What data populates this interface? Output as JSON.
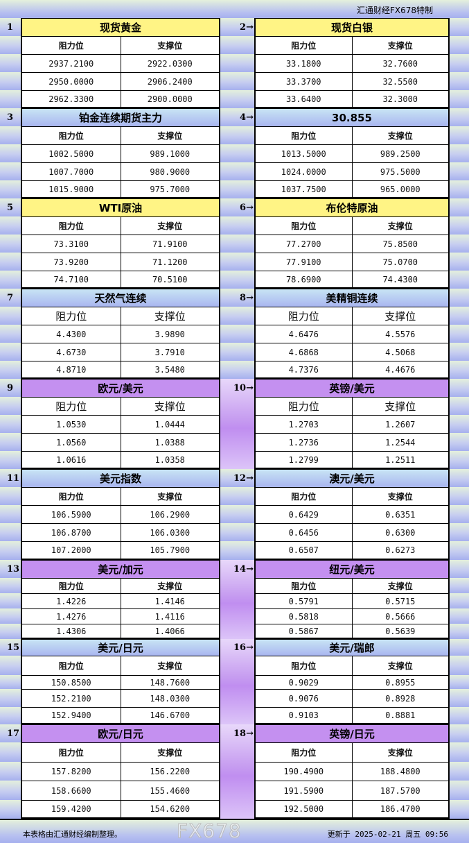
{
  "brand": "汇通财经FX678特制",
  "sections": [
    {
      "style": "yellow",
      "left": {
        "no": "1",
        "title": "现货黄金",
        "headers": [
          "阻力位",
          "支撑位"
        ],
        "rows": [
          [
            "2937.2100",
            "2922.0300"
          ],
          [
            "2950.0000",
            "2906.2400"
          ],
          [
            "2962.3300",
            "2900.0000"
          ]
        ]
      },
      "right": {
        "no": "2→",
        "title": "现货白银",
        "headers": [
          "阻力位",
          "支撑位"
        ],
        "rows": [
          [
            "33.1800",
            "32.7600"
          ],
          [
            "33.3700",
            "32.5500"
          ],
          [
            "33.6400",
            "32.3000"
          ]
        ]
      }
    },
    {
      "style": "blue",
      "left": {
        "no": "3",
        "title": "铂金连续期货主力",
        "headers": [
          "阻力位",
          "支撑位"
        ],
        "rows": [
          [
            "1002.5000",
            "989.1000"
          ],
          [
            "1007.7000",
            "980.9000"
          ],
          [
            "1015.9000",
            "975.7000"
          ]
        ]
      },
      "right": {
        "no": "4→",
        "title": "30.855",
        "headers": [
          "阻力位",
          "支撑位"
        ],
        "rows": [
          [
            "1013.5000",
            "989.2500"
          ],
          [
            "1024.0000",
            "975.5000"
          ],
          [
            "1037.7500",
            "965.0000"
          ]
        ]
      }
    },
    {
      "style": "yellow",
      "left": {
        "no": "5",
        "title": "WTI原油",
        "headers": [
          "阻力位",
          "支撑位"
        ],
        "rows": [
          [
            "73.3100",
            "71.9100"
          ],
          [
            "73.9200",
            "71.1200"
          ],
          [
            "74.7100",
            "70.5100"
          ]
        ]
      },
      "right": {
        "no": "6→",
        "title": "布伦特原油",
        "headers": [
          "阻力位",
          "支撑位"
        ],
        "rows": [
          [
            "77.2700",
            "75.8500"
          ],
          [
            "77.9100",
            "75.0700"
          ],
          [
            "78.6900",
            "74.4300"
          ]
        ]
      }
    },
    {
      "style": "blue",
      "left": {
        "no": "7",
        "title": "天然气连续",
        "headers": [
          "阻力位",
          "支撑位"
        ],
        "rows": [
          [
            "4.4300",
            "3.9890"
          ],
          [
            "4.6730",
            "3.7910"
          ],
          [
            "4.8710",
            "3.5480"
          ]
        ]
      },
      "right": {
        "no": "8→",
        "title": "美精铜连续",
        "headers": [
          "阻力位",
          "支撑位"
        ],
        "rows": [
          [
            "4.6476",
            "4.5576"
          ],
          [
            "4.6868",
            "4.5068"
          ],
          [
            "4.7376",
            "4.4676"
          ]
        ]
      }
    },
    {
      "style": "purple",
      "left": {
        "no": "9",
        "title": "欧元/美元",
        "headers": [
          "阻力位",
          "支撑位"
        ],
        "rows": [
          [
            "1.0530",
            "1.0444"
          ],
          [
            "1.0560",
            "1.0388"
          ],
          [
            "1.0616",
            "1.0358"
          ]
        ]
      },
      "right": {
        "no": "10→",
        "title": "英镑/美元",
        "headers": [
          "阻力位",
          "支撑位"
        ],
        "rows": [
          [
            "1.2703",
            "1.2607"
          ],
          [
            "1.2736",
            "1.2544"
          ],
          [
            "1.2799",
            "1.2511"
          ]
        ]
      }
    },
    {
      "style": "blue",
      "left": {
        "no": "11",
        "title": "美元指数",
        "headers": [
          "阻力位",
          "支撑位"
        ],
        "rows": [
          [
            "106.5900",
            "106.2900"
          ],
          [
            "106.8700",
            "106.0300"
          ],
          [
            "107.2000",
            "105.7900"
          ]
        ]
      },
      "right": {
        "no": "12→",
        "title": "澳元/美元",
        "headers": [
          "阻力位",
          "支撑位"
        ],
        "rows": [
          [
            "0.6429",
            "0.6351"
          ],
          [
            "0.6456",
            "0.6300"
          ],
          [
            "0.6507",
            "0.6273"
          ]
        ]
      }
    },
    {
      "style": "purple",
      "left": {
        "no": "13",
        "title": "美元/加元",
        "headers": [
          "阻力位",
          "支撑位"
        ],
        "rows": [
          [
            "1.4226",
            "1.4146"
          ],
          [
            "1.4276",
            "1.4116"
          ],
          [
            "1.4306",
            "1.4066"
          ]
        ]
      },
      "right": {
        "no": "14→",
        "title": "纽元/美元",
        "headers": [
          "阻力位",
          "支撑位"
        ],
        "rows": [
          [
            "0.5791",
            "0.5715"
          ],
          [
            "0.5818",
            "0.5666"
          ],
          [
            "0.5867",
            "0.5639"
          ]
        ]
      }
    },
    {
      "style": "blue",
      "left": {
        "no": "15",
        "title": "美元/日元",
        "headers": [
          "阻力位",
          "支撑位"
        ],
        "rows": [
          [
            "150.8500",
            "148.7600"
          ],
          [
            "152.2100",
            "148.0300"
          ],
          [
            "152.9400",
            "146.6700"
          ]
        ]
      },
      "right": {
        "no": "16→",
        "title": "美元/瑞郎",
        "headers": [
          "阻力位",
          "支撑位"
        ],
        "rows": [
          [
            "0.9029",
            "0.8955"
          ],
          [
            "0.9076",
            "0.8928"
          ],
          [
            "0.9103",
            "0.8881"
          ]
        ]
      }
    },
    {
      "style": "purple",
      "left": {
        "no": "17",
        "title": "欧元/日元",
        "headers": [
          "阻力位",
          "支撑位"
        ],
        "rows": [
          [
            "157.8200",
            "156.2200"
          ],
          [
            "158.6600",
            "155.4600"
          ],
          [
            "159.4200",
            "154.6200"
          ]
        ]
      },
      "right": {
        "no": "18→",
        "title": "英镑/日元",
        "headers": [
          "阻力位",
          "支撑位"
        ],
        "rows": [
          [
            "190.4900",
            "188.4800"
          ],
          [
            "191.5900",
            "187.5700"
          ],
          [
            "192.5000",
            "186.4700"
          ]
        ]
      }
    }
  ],
  "footer": {
    "note": "本表格由汇通财经编制整理。",
    "updated": "更新于 2025-02-21 周五 09:56"
  },
  "watermark": "FX678"
}
